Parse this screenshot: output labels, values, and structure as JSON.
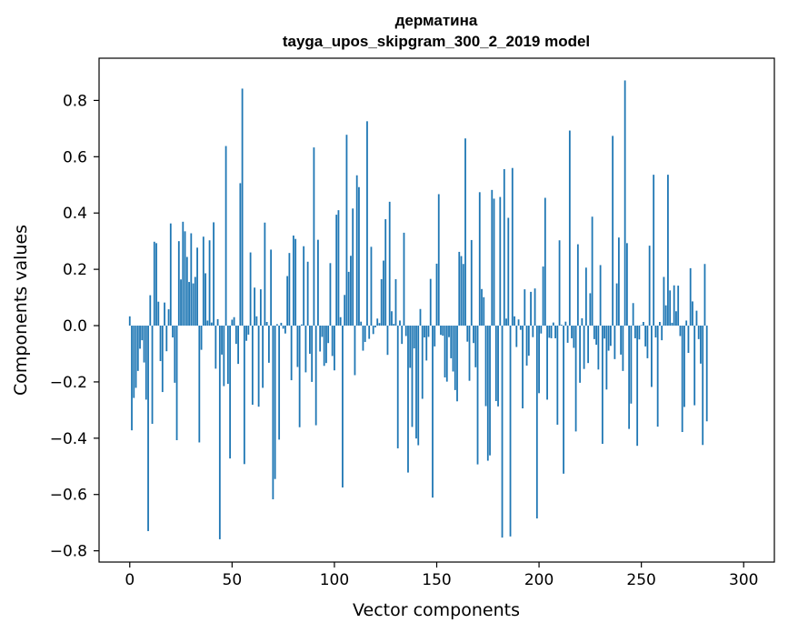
{
  "chart_data": {
    "type": "bar",
    "title": "дерматина",
    "subtitle": "tayga_upos_skipgram_300_2_2019 model",
    "xlabel": "Vector components",
    "ylabel": "Components values",
    "xlim": [
      -15,
      315
    ],
    "ylim": [
      -0.84,
      0.95
    ],
    "xticks": [
      0,
      50,
      100,
      150,
      200,
      250,
      300
    ],
    "xtick_labels": [
      "0",
      "50",
      "100",
      "150",
      "200",
      "250",
      "300"
    ],
    "yticks": [
      -0.8,
      -0.6,
      -0.4,
      -0.2,
      0.0,
      0.2,
      0.4,
      0.6,
      0.8
    ],
    "ytick_labels": [
      "−0.8",
      "−0.6",
      "−0.4",
      "−0.2",
      "0.0",
      "0.2",
      "0.4",
      "0.6",
      "0.8"
    ],
    "grid": false,
    "legend": false,
    "bar_color": "#1f77b4",
    "series": [
      {
        "values": [
          0.033,
          -0.372,
          -0.257,
          -0.221,
          -0.161,
          -0.082,
          -0.052,
          -0.131,
          -0.263,
          -0.73,
          0.108,
          -0.349,
          0.298,
          0.293,
          0.085,
          -0.126,
          -0.236,
          0.082,
          -0.091,
          0.058,
          0.363,
          -0.042,
          -0.203,
          -0.407,
          0.3,
          0.164,
          0.369,
          0.335,
          0.244,
          0.155,
          0.328,
          0.15,
          0.173,
          0.277,
          -0.415,
          -0.086,
          0.316,
          0.186,
          0.018,
          0.303,
          0.011,
          0.367,
          -0.153,
          0.023,
          -0.759,
          -0.103,
          -0.215,
          0.638,
          -0.207,
          -0.472,
          0.021,
          0.03,
          -0.065,
          -0.136,
          0.506,
          0.842,
          -0.492,
          -0.054,
          -0.032,
          0.26,
          -0.281,
          0.135,
          0.033,
          -0.288,
          0.129,
          -0.221,
          0.366,
          0.013,
          -0.132,
          0.27,
          -0.617,
          -0.545,
          0.005,
          -0.405,
          0.01,
          -0.011,
          -0.028,
          0.176,
          0.258,
          -0.194,
          0.32,
          0.308,
          -0.147,
          -0.361,
          0.004,
          0.282,
          -0.166,
          0.227,
          -0.1,
          -0.2,
          0.633,
          -0.354,
          0.305,
          -0.092,
          -0.04,
          -0.143,
          -0.133,
          -0.062,
          0.222,
          -0.108,
          -0.159,
          0.394,
          0.41,
          0.03,
          -0.575,
          0.109,
          0.678,
          0.191,
          0.248,
          0.416,
          -0.176,
          0.534,
          0.492,
          0.014,
          -0.089,
          -0.058,
          0.726,
          -0.047,
          0.28,
          -0.03,
          -0.006,
          0.025,
          0.009,
          0.165,
          0.231,
          0.378,
          -0.104,
          0.44,
          0.051,
          0.006,
          0.165,
          -0.436,
          0.018,
          -0.065,
          0.33,
          -0.037,
          -0.522,
          -0.15,
          -0.36,
          -0.081,
          -0.401,
          -0.425,
          0.059,
          -0.26,
          -0.042,
          -0.124,
          -0.04,
          0.166,
          -0.611,
          -0.074,
          0.22,
          0.467,
          -0.033,
          -0.036,
          -0.184,
          -0.199,
          -0.041,
          -0.116,
          -0.163,
          -0.229,
          -0.269,
          0.262,
          0.247,
          0.219,
          0.665,
          -0.057,
          -0.196,
          0.304,
          -0.062,
          -0.148,
          -0.493,
          0.474,
          0.13,
          0.101,
          -0.286,
          -0.48,
          -0.461,
          0.482,
          0.451,
          -0.268,
          -0.287,
          0.457,
          -0.753,
          0.556,
          0.025,
          0.383,
          -0.749,
          0.56,
          0.033,
          -0.076,
          0.022,
          -0.015,
          -0.294,
          0.129,
          -0.142,
          -0.107,
          0.12,
          -0.041,
          0.132,
          -0.685,
          -0.24,
          -0.028,
          0.21,
          0.454,
          -0.263,
          -0.043,
          -0.045,
          0.011,
          -0.045,
          -0.352,
          0.303,
          0.003,
          -0.526,
          0.014,
          -0.061,
          0.693,
          -0.045,
          -0.079,
          -0.376,
          0.289,
          -0.203,
          0.026,
          -0.154,
          0.206,
          -0.133,
          0.115,
          0.387,
          -0.048,
          -0.068,
          -0.156,
          0.215,
          -0.42,
          -0.046,
          -0.227,
          -0.089,
          -0.072,
          0.674,
          -0.119,
          0.15,
          0.313,
          -0.103,
          -0.161,
          0.871,
          0.293,
          -0.367,
          -0.277,
          0.08,
          -0.045,
          -0.427,
          -0.049,
          0.002,
          0.013,
          -0.074,
          -0.116,
          0.284,
          -0.218,
          0.536,
          -0.042,
          -0.359,
          0.013,
          -0.052,
          0.173,
          0.072,
          0.536,
          0.125,
          0.01,
          0.143,
          0.051,
          0.142,
          -0.037,
          -0.378,
          -0.289,
          0.018,
          -0.097,
          0.204,
          0.086,
          -0.283,
          0.053,
          -0.048,
          -0.135,
          -0.424,
          0.219,
          -0.34
        ]
      }
    ]
  }
}
